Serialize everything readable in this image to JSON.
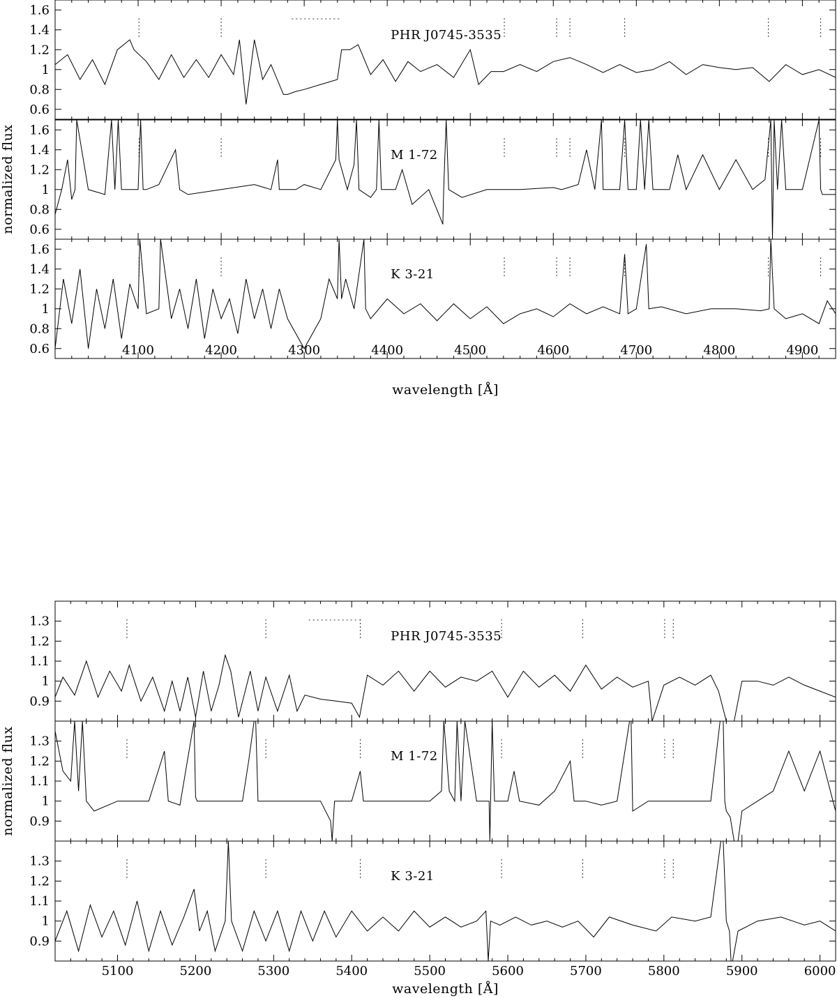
{
  "chart_data": [
    {
      "type": "line",
      "title": "",
      "xlabel": "wavelength [Å]",
      "ylabel": "normalized flux",
      "xlim": [
        4000,
        4940
      ],
      "xticks": [
        4100,
        4200,
        4300,
        4400,
        4500,
        4600,
        4700,
        4800,
        4900
      ],
      "xtick_labels": [
        "4100",
        "4200",
        "4300",
        "4400",
        "4500",
        "4600",
        "4700",
        "4800",
        "4900"
      ],
      "grid": false,
      "legend": "none",
      "line_markers": [
        4101,
        4200,
        4541,
        4604,
        4620,
        4686,
        4859,
        4922
      ],
      "gap_marker": [
        4285,
        4345
      ],
      "panels": [
        {
          "object": "PHR J0745-3535",
          "ylim": [
            0.5,
            1.7
          ],
          "yticks": [
            0.6,
            0.8,
            1,
            1.2,
            1.4,
            1.6
          ],
          "ytick_labels": [
            "0.6",
            "0.8",
            "1",
            "1.2",
            "1.4",
            "1.6"
          ],
          "x": [
            4000,
            4015,
            4030,
            4045,
            4060,
            4075,
            4090,
            4095,
            4110,
            4125,
            4140,
            4155,
            4170,
            4185,
            4200,
            4215,
            4222,
            4230,
            4240,
            4250,
            4260,
            4275,
            4280,
            4290,
            4300,
            4320,
            4340,
            4345,
            4355,
            4365,
            4380,
            4395,
            4410,
            4425,
            4440,
            4460,
            4480,
            4500,
            4510,
            4525,
            4540,
            4560,
            4580,
            4600,
            4620,
            4640,
            4660,
            4680,
            4700,
            4720,
            4740,
            4760,
            4780,
            4800,
            4820,
            4840,
            4860,
            4880,
            4900,
            4920,
            4940
          ],
          "y": [
            1.05,
            1.15,
            0.9,
            1.1,
            0.85,
            1.2,
            1.3,
            1.2,
            1.08,
            0.9,
            1.15,
            0.92,
            1.1,
            0.92,
            1.15,
            0.95,
            1.3,
            0.65,
            1.3,
            0.9,
            1.05,
            0.75,
            0.75,
            0.78,
            0.8,
            0.85,
            0.9,
            1.2,
            1.2,
            1.25,
            0.95,
            1.1,
            0.88,
            1.08,
            0.98,
            1.05,
            0.92,
            1.2,
            0.85,
            0.98,
            0.98,
            1.05,
            0.98,
            1.08,
            1.12,
            1.05,
            0.97,
            1.05,
            0.97,
            1.0,
            1.08,
            0.95,
            1.05,
            1.02,
            1.0,
            1.02,
            0.88,
            1.05,
            0.95,
            1.0,
            0.92
          ]
        },
        {
          "object": "M 1-72",
          "ylim": [
            0.5,
            1.7
          ],
          "yticks": [
            0.6,
            0.8,
            1,
            1.2,
            1.4,
            1.6
          ],
          "ytick_labels": [
            "0.6",
            "0.8",
            "1",
            "1.2",
            "1.4",
            "1.6"
          ],
          "x": [
            4000,
            4008,
            4015,
            4020,
            4024,
            4026,
            4040,
            4060,
            4068,
            4072,
            4076,
            4080,
            4090,
            4100,
            4103,
            4106,
            4110,
            4125,
            4145,
            4150,
            4160,
            4200,
            4240,
            4260,
            4268,
            4270,
            4290,
            4300,
            4320,
            4338,
            4340,
            4342,
            4352,
            4360,
            4363,
            4366,
            4380,
            4387,
            4390,
            4393,
            4410,
            4418,
            4430,
            4450,
            4467,
            4468,
            4471,
            4474,
            4490,
            4520,
            4560,
            4600,
            4610,
            4630,
            4640,
            4650,
            4658,
            4660,
            4663,
            4680,
            4686,
            4690,
            4700,
            4705,
            4710,
            4715,
            4720,
            4740,
            4750,
            4760,
            4780,
            4800,
            4820,
            4840,
            4855,
            4862,
            4864,
            4866,
            4870,
            4875,
            4880,
            4885,
            4900,
            4920,
            4922,
            4924,
            4940
          ],
          "y": [
            0.75,
            1.0,
            1.3,
            0.9,
            1.0,
            1.7,
            1.0,
            0.95,
            1.7,
            1.0,
            1.7,
            1.0,
            1.0,
            1.0,
            1.7,
            1.0,
            1.0,
            1.05,
            1.4,
            1.0,
            0.95,
            1.0,
            1.05,
            1.0,
            1.3,
            1.0,
            1.0,
            1.05,
            1.0,
            1.3,
            1.7,
            1.3,
            1.0,
            1.25,
            1.7,
            1.0,
            0.92,
            1.0,
            1.7,
            1.0,
            1.0,
            1.2,
            0.85,
            1.0,
            0.65,
            1.0,
            1.7,
            1.0,
            0.92,
            1.0,
            1.0,
            1.02,
            1.0,
            1.05,
            1.4,
            1.0,
            1.7,
            1.0,
            1.0,
            1.0,
            1.7,
            1.0,
            1.0,
            1.7,
            1.0,
            1.7,
            1.0,
            1.0,
            1.35,
            1.0,
            1.35,
            1.0,
            1.3,
            1.0,
            1.1,
            1.7,
            0.5,
            1.7,
            1.0,
            1.7,
            1.0,
            1.0,
            1.0,
            1.7,
            1.0,
            0.95,
            0.95
          ]
        },
        {
          "object": "K 3-21",
          "ylim": [
            0.5,
            1.7
          ],
          "yticks": [
            0.6,
            0.8,
            1,
            1.2,
            1.4,
            1.6
          ],
          "ytick_labels": [
            "0.6",
            "0.8",
            "1",
            "1.2",
            "1.4",
            "1.6"
          ],
          "x": [
            4000,
            4010,
            4020,
            4030,
            4040,
            4050,
            4060,
            4070,
            4080,
            4090,
            4100,
            4102,
            4110,
            4125,
            4127,
            4140,
            4150,
            4160,
            4170,
            4180,
            4190,
            4200,
            4210,
            4220,
            4230,
            4240,
            4250,
            4260,
            4270,
            4280,
            4300,
            4320,
            4330,
            4340,
            4342,
            4345,
            4350,
            4360,
            4372,
            4374,
            4380,
            4400,
            4420,
            4440,
            4460,
            4480,
            4500,
            4520,
            4540,
            4560,
            4580,
            4600,
            4620,
            4640,
            4660,
            4680,
            4686,
            4690,
            4700,
            4712,
            4715,
            4730,
            4760,
            4790,
            4820,
            4850,
            4860,
            4862,
            4866,
            4880,
            4900,
            4920,
            4930,
            4940
          ],
          "y": [
            0.6,
            1.3,
            0.85,
            1.4,
            0.6,
            1.2,
            0.8,
            1.3,
            0.7,
            1.25,
            1.0,
            1.7,
            0.95,
            1.0,
            1.7,
            0.9,
            1.2,
            0.8,
            1.3,
            0.7,
            1.2,
            0.9,
            1.1,
            0.75,
            1.3,
            0.9,
            1.2,
            0.8,
            1.2,
            0.9,
            0.6,
            0.9,
            1.3,
            1.1,
            1.7,
            1.1,
            1.3,
            1.0,
            1.7,
            1.0,
            0.9,
            1.1,
            0.95,
            1.05,
            0.88,
            1.05,
            0.9,
            1.02,
            0.85,
            0.95,
            1.0,
            0.92,
            1.05,
            0.95,
            1.02,
            0.95,
            1.55,
            0.95,
            1.0,
            1.65,
            1.0,
            1.02,
            0.95,
            1.0,
            1.0,
            0.98,
            1.0,
            1.7,
            1.0,
            0.9,
            0.95,
            0.85,
            1.08,
            0.95
          ]
        }
      ]
    },
    {
      "type": "line",
      "title": "",
      "xlabel": "wavelength [Å]",
      "ylabel": "normalized flux",
      "xlim": [
        5020,
        6020
      ],
      "xticks": [
        5100,
        5200,
        5300,
        5400,
        5500,
        5600,
        5700,
        5800,
        5900,
        6000
      ],
      "xtick_labels": [
        "5100",
        "5200",
        "5300",
        "5400",
        "5500",
        "5600",
        "5700",
        "5800",
        "5900",
        "6000"
      ],
      "grid": false,
      "legend": "none",
      "line_markers": [
        5112,
        5290,
        5411,
        5592,
        5696,
        5801,
        5812
      ],
      "gap_marker": [
        5345,
        5410
      ],
      "panels": [
        {
          "object": "PHR J0745-3535",
          "ylim": [
            0.8,
            1.4
          ],
          "yticks": [
            0.9,
            1,
            1.1,
            1.2,
            1.3
          ],
          "ytick_labels": [
            "0.9",
            "1",
            "1.1",
            "1.2",
            "1.3"
          ],
          "x": [
            5020,
            5030,
            5045,
            5060,
            5075,
            5090,
            5105,
            5115,
            5130,
            5145,
            5160,
            5170,
            5180,
            5190,
            5200,
            5210,
            5220,
            5230,
            5238,
            5245,
            5255,
            5270,
            5280,
            5290,
            5305,
            5320,
            5330,
            5340,
            5360,
            5380,
            5400,
            5410,
            5420,
            5440,
            5460,
            5480,
            5500,
            5520,
            5540,
            5560,
            5580,
            5600,
            5620,
            5640,
            5660,
            5680,
            5700,
            5720,
            5740,
            5760,
            5780,
            5785,
            5800,
            5820,
            5840,
            5860,
            5870,
            5880,
            5890,
            5900,
            5920,
            5940,
            5960,
            5980,
            6000,
            6020
          ],
          "y": [
            0.92,
            1.02,
            0.93,
            1.1,
            0.92,
            1.05,
            0.95,
            1.08,
            0.9,
            1.02,
            0.85,
            1.0,
            0.85,
            1.02,
            0.82,
            1.05,
            0.85,
            0.98,
            1.13,
            1.05,
            0.82,
            1.05,
            0.85,
            1.02,
            0.85,
            1.03,
            0.85,
            0.93,
            0.91,
            0.9,
            0.89,
            0.82,
            1.03,
            0.98,
            1.05,
            0.95,
            1.05,
            0.97,
            1.02,
            1.0,
            1.05,
            0.92,
            1.05,
            0.97,
            1.03,
            0.95,
            1.08,
            0.96,
            1.02,
            0.97,
            1.0,
            0.8,
            0.98,
            1.02,
            0.98,
            1.03,
            0.95,
            0.8,
            0.8,
            1.0,
            1.0,
            0.98,
            1.02,
            0.98,
            0.95,
            0.92
          ]
        },
        {
          "object": "M 1-72",
          "ylim": [
            0.8,
            1.4
          ],
          "yticks": [
            0.9,
            1,
            1.1,
            1.2,
            1.3
          ],
          "ytick_labels": [
            "0.9",
            "1",
            "1.1",
            "1.2",
            "1.3"
          ],
          "x": [
            5020,
            5030,
            5040,
            5045,
            5050,
            5055,
            5060,
            5070,
            5100,
            5140,
            5160,
            5165,
            5180,
            5198,
            5200,
            5202,
            5230,
            5260,
            5268,
            5275,
            5277,
            5280,
            5300,
            5330,
            5360,
            5373,
            5375,
            5378,
            5400,
            5411,
            5415,
            5450,
            5500,
            5515,
            5518,
            5525,
            5532,
            5535,
            5540,
            5545,
            5560,
            5576,
            5577,
            5580,
            5583,
            5600,
            5608,
            5615,
            5640,
            5660,
            5680,
            5685,
            5700,
            5720,
            5740,
            5756,
            5758,
            5760,
            5780,
            5800,
            5820,
            5840,
            5860,
            5872,
            5874,
            5876,
            5878,
            5880,
            5885,
            5890,
            5895,
            5900,
            5920,
            5940,
            5960,
            5980,
            6000,
            6020
          ],
          "y": [
            1.35,
            1.15,
            1.1,
            1.4,
            1.05,
            1.4,
            1.0,
            0.95,
            1.0,
            1.0,
            1.25,
            1.0,
            0.98,
            1.4,
            1.02,
            1.0,
            1.0,
            1.0,
            1.2,
            1.4,
            1.4,
            1.0,
            1.0,
            1.0,
            1.0,
            0.9,
            0.8,
            1.0,
            1.0,
            1.15,
            1.0,
            1.0,
            1.0,
            1.05,
            1.4,
            1.05,
            1.0,
            1.4,
            1.0,
            1.4,
            1.0,
            1.0,
            0.8,
            1.4,
            1.0,
            1.0,
            1.15,
            1.0,
            0.98,
            1.05,
            1.2,
            1.0,
            1.0,
            0.98,
            1.0,
            1.4,
            1.4,
            0.95,
            1.0,
            1.0,
            1.0,
            1.0,
            1.0,
            1.4,
            1.4,
            1.4,
            1.0,
            0.95,
            0.92,
            0.8,
            0.8,
            0.95,
            1.0,
            1.05,
            1.25,
            1.05,
            1.25,
            0.95
          ]
        },
        {
          "object": "K 3-21",
          "ylim": [
            0.8,
            1.4
          ],
          "yticks": [
            0.9,
            1,
            1.1,
            1.2,
            1.3
          ],
          "ytick_labels": [
            "0.9",
            "1",
            "1.1",
            "1.2",
            "1.3"
          ],
          "x": [
            5020,
            5035,
            5050,
            5065,
            5080,
            5095,
            5110,
            5125,
            5140,
            5155,
            5170,
            5185,
            5198,
            5205,
            5215,
            5225,
            5238,
            5242,
            5246,
            5260,
            5275,
            5290,
            5305,
            5320,
            5335,
            5350,
            5365,
            5380,
            5400,
            5420,
            5440,
            5460,
            5480,
            5500,
            5520,
            5540,
            5560,
            5572,
            5575,
            5578,
            5590,
            5610,
            5630,
            5650,
            5670,
            5690,
            5710,
            5730,
            5760,
            5790,
            5810,
            5840,
            5860,
            5873,
            5876,
            5880,
            5884,
            5886,
            5888,
            5895,
            5920,
            5950,
            5980,
            6000,
            6020
          ],
          "y": [
            0.9,
            1.05,
            0.85,
            1.08,
            0.92,
            1.05,
            0.88,
            1.1,
            0.85,
            1.05,
            0.88,
            1.02,
            1.16,
            0.95,
            1.05,
            0.85,
            1.0,
            1.4,
            1.0,
            0.85,
            1.05,
            0.9,
            1.05,
            0.85,
            1.05,
            0.9,
            1.05,
            0.92,
            1.05,
            0.95,
            1.02,
            0.95,
            1.05,
            0.97,
            1.02,
            0.97,
            1.0,
            1.05,
            0.8,
            1.0,
            0.98,
            1.02,
            0.98,
            1.0,
            0.97,
            1.0,
            0.92,
            1.02,
            0.98,
            0.95,
            1.02,
            1.0,
            1.02,
            1.4,
            1.4,
            1.0,
            0.95,
            0.8,
            0.8,
            0.95,
            1.0,
            1.02,
            0.98,
            1.0,
            0.95
          ]
        }
      ]
    }
  ]
}
